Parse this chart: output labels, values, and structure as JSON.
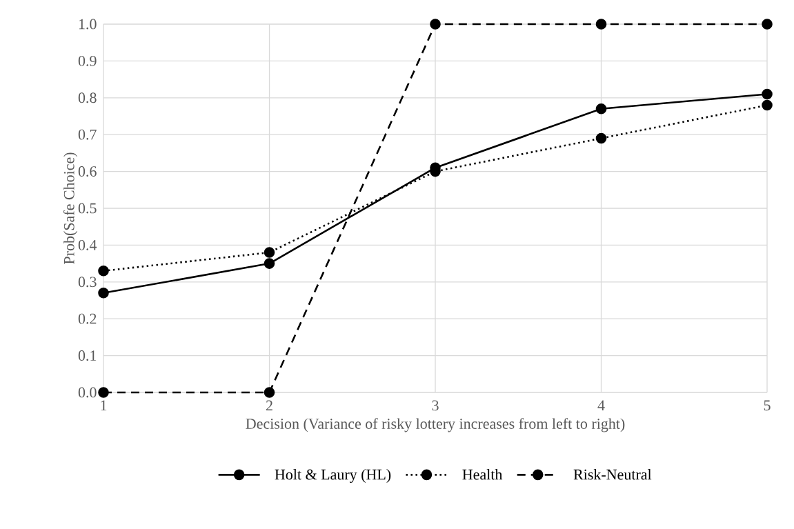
{
  "chart_data": {
    "type": "line",
    "xlabel": "Decision (Variance of risky lottery increases from left to right)",
    "ylabel": "Prob(Safe Choice)",
    "x": [
      1,
      2,
      3,
      4,
      5
    ],
    "xlim": [
      1,
      5
    ],
    "xticks": [
      1,
      2,
      3,
      4,
      5
    ],
    "ylim": [
      0,
      1
    ],
    "yticks": [
      {
        "value": 0,
        "label": "0.0"
      },
      0.1,
      0.2,
      0.3,
      0.4,
      0.5,
      0.6,
      0.7,
      0.8,
      0.9,
      {
        "value": 1,
        "label": "1.0"
      }
    ],
    "grid": true,
    "legend": "bottom",
    "marker": "circle",
    "series": [
      {
        "name": "Holt & Laury (HL)",
        "color": "#000000",
        "line_style": "solid",
        "values": [
          0.27,
          0.35,
          0.61,
          0.77,
          0.81
        ]
      },
      {
        "name": "Health",
        "color": "#000000",
        "line_style": "dotted",
        "values": [
          0.33,
          0.38,
          0.6,
          0.69,
          0.78
        ]
      },
      {
        "name": "Risk-Neutral",
        "color": "#000000",
        "line_style": "dashed",
        "values": [
          0,
          0,
          1,
          1,
          1
        ]
      }
    ]
  }
}
